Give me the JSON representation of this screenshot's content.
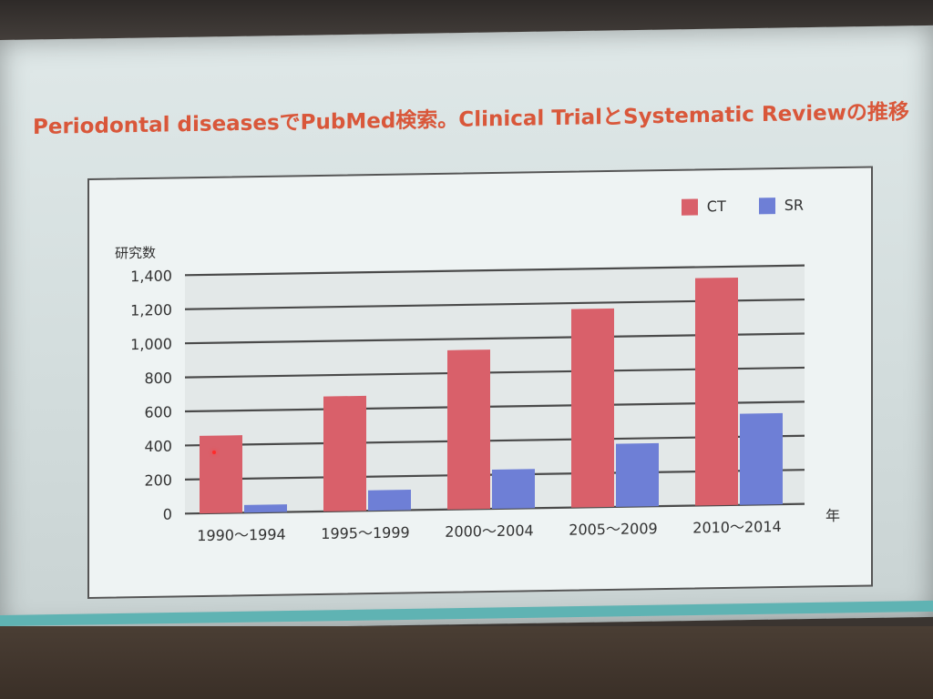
{
  "slide": {
    "title": "Periodontal diseasesでPubMed検索。Clinical TrialとSystematic Reviewの推移"
  },
  "colors": {
    "title": "#d9573a",
    "ct": "#d9606a",
    "sr": "#6e7fd6",
    "accent_strip": "#5fb3b3"
  },
  "chart_data": {
    "type": "bar",
    "categories": [
      "1990〜1994",
      "1995〜1999",
      "2000〜2004",
      "2005〜2009",
      "2010〜2014"
    ],
    "series": [
      {
        "name": "CT",
        "values": [
          455,
          675,
          935,
          1165,
          1335
        ]
      },
      {
        "name": "SR",
        "values": [
          45,
          120,
          230,
          370,
          535
        ]
      }
    ],
    "ylabel": "研究数",
    "xlabel": "年",
    "ylim": [
      0,
      1400
    ],
    "yticks": [
      0,
      200,
      400,
      600,
      800,
      1000,
      1200,
      1400
    ],
    "ytick_labels": [
      "0",
      "200",
      "400",
      "600",
      "800",
      "1,000",
      "1,200",
      "1,400"
    ],
    "grid": true,
    "legend_position": "top-right"
  }
}
